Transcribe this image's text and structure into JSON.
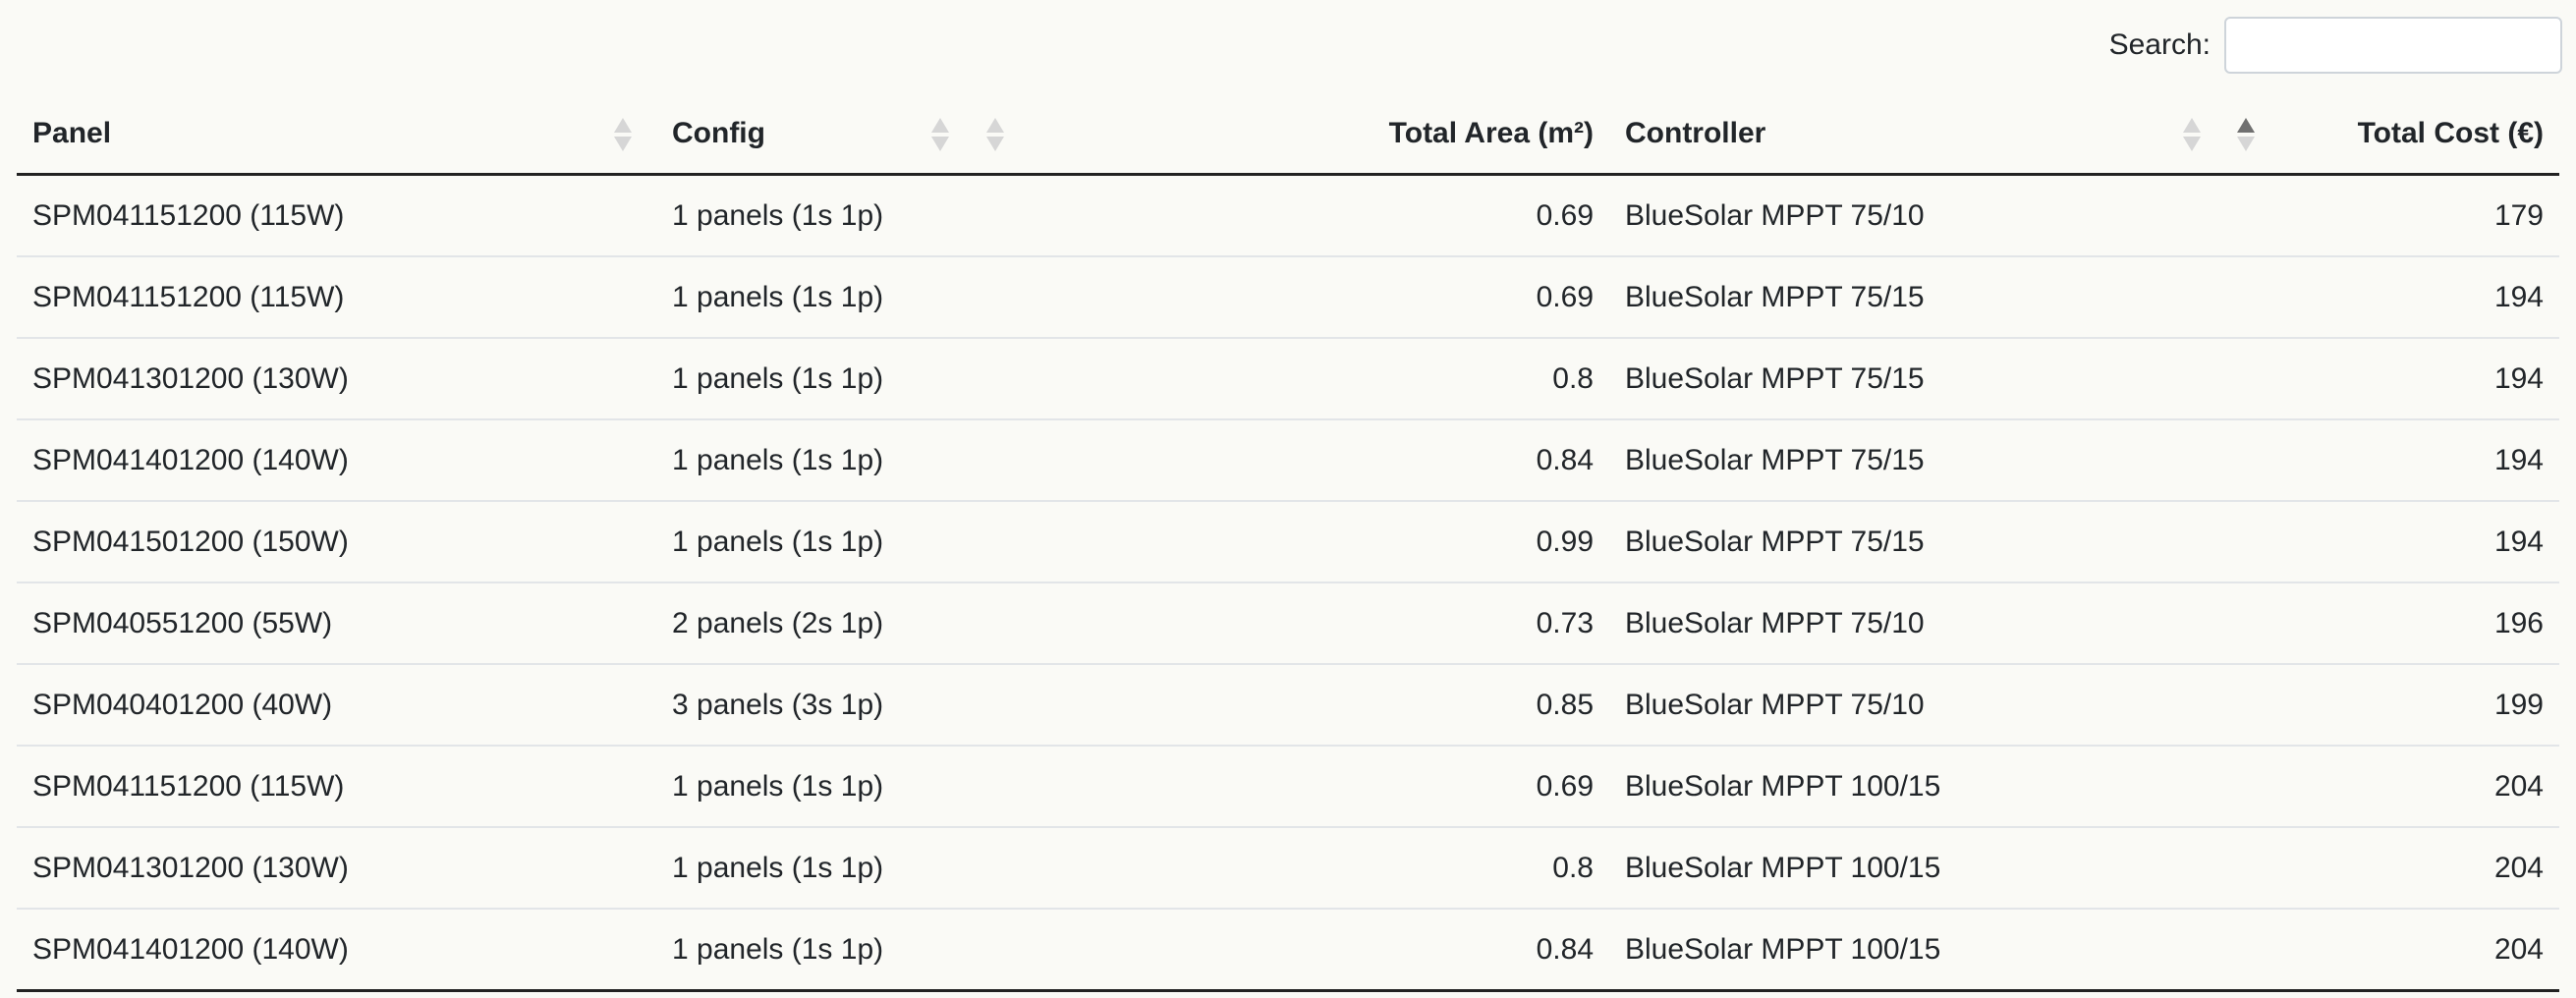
{
  "search": {
    "label": "Search:",
    "value": "",
    "placeholder": ""
  },
  "columns": [
    {
      "label": "Panel",
      "sort": "none"
    },
    {
      "label": "Config",
      "sort": "none"
    },
    {
      "label": "Total Area (m²)",
      "sort": "none"
    },
    {
      "label": "Controller",
      "sort": "none"
    },
    {
      "label": "Total Cost (€)",
      "sort": "ascending"
    }
  ],
  "rows": [
    [
      "SPM041151200 (115W)",
      "1 panels (1s 1p)",
      "0.69",
      "BlueSolar MPPT 75/10",
      "179"
    ],
    [
      "SPM041151200 (115W)",
      "1 panels (1s 1p)",
      "0.69",
      "BlueSolar MPPT 75/15",
      "194"
    ],
    [
      "SPM041301200 (130W)",
      "1 panels (1s 1p)",
      "0.8",
      "BlueSolar MPPT 75/15",
      "194"
    ],
    [
      "SPM041401200 (140W)",
      "1 panels (1s 1p)",
      "0.84",
      "BlueSolar MPPT 75/15",
      "194"
    ],
    [
      "SPM041501200 (150W)",
      "1 panels (1s 1p)",
      "0.99",
      "BlueSolar MPPT 75/15",
      "194"
    ],
    [
      "SPM040551200 (55W)",
      "2 panels (2s 1p)",
      "0.73",
      "BlueSolar MPPT 75/10",
      "196"
    ],
    [
      "SPM040401200 (40W)",
      "3 panels (3s 1p)",
      "0.85",
      "BlueSolar MPPT 75/10",
      "199"
    ],
    [
      "SPM041151200 (115W)",
      "1 panels (1s 1p)",
      "0.69",
      "BlueSolar MPPT 100/15",
      "204"
    ],
    [
      "SPM041301200 (130W)",
      "1 panels (1s 1p)",
      "0.8",
      "BlueSolar MPPT 100/15",
      "204"
    ],
    [
      "SPM041401200 (140W)",
      "1 panels (1s 1p)",
      "0.84",
      "BlueSolar MPPT 100/15",
      "204"
    ]
  ]
}
